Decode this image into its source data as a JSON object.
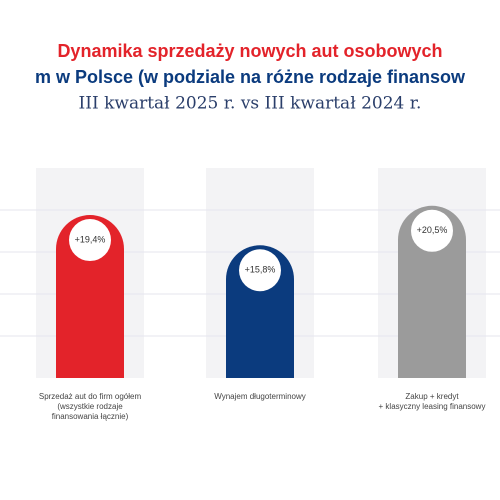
{
  "chart_data": {
    "type": "bar",
    "title": "Dynamika sprzedaży nowych aut osobowych",
    "title_line2": "m w Polsce (w podziale na różne rodzaje finansow",
    "subtitle": "III kwartał 2025 r. vs III kwartał 2024 r.",
    "categories": [
      "Sprzedaż aut do firm ogółem\n(wszystkie rodzaje\nfinansowania łącznie)",
      "Wynajem długoterminowy",
      "Zakup + kredyt\n+ klasyczny leasing finansowy"
    ],
    "values": [
      19.4,
      15.8,
      20.5
    ],
    "value_labels": [
      "+19,4%",
      "+15,8%",
      "+20,5%"
    ],
    "colors": [
      "#e3232a",
      "#0b3b7e",
      "#9b9b9b"
    ],
    "ylim": [
      0,
      25
    ],
    "yticks": [
      5,
      10,
      15,
      20
    ],
    "grid": true
  }
}
